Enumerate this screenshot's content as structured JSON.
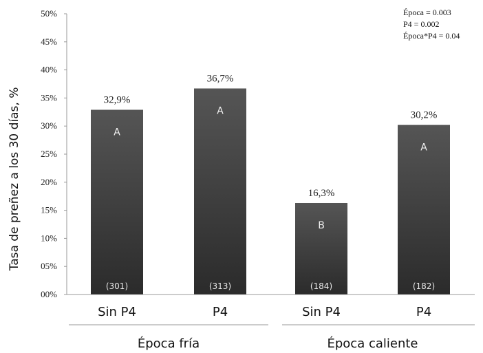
{
  "chart_data": {
    "type": "bar",
    "ylabel": "Tasa de preñez a los 30 días, %",
    "ylim": [
      0,
      50
    ],
    "y_ticks": [
      "00%",
      "05%",
      "10%",
      "15%",
      "20%",
      "25%",
      "30%",
      "35%",
      "40%",
      "45%",
      "50%"
    ],
    "categories": [
      "Sin P4",
      "P4",
      "Sin P4",
      "P4"
    ],
    "groups": [
      {
        "label": "Época fría",
        "categories": [
          0,
          1
        ]
      },
      {
        "label": "Época caliente",
        "categories": [
          2,
          3
        ]
      }
    ],
    "values": [
      32.9,
      36.7,
      16.3,
      30.2
    ],
    "value_labels": [
      "32,9%",
      "36,7%",
      "16,3%",
      "30,2%"
    ],
    "letters": [
      "A",
      "A",
      "B",
      "A"
    ],
    "counts": [
      "(301)",
      "(313)",
      "(184)",
      "(182)"
    ],
    "annotations": [
      "Época = 0.003",
      "P4 = 0.002",
      "Época*P4 = 0.04"
    ],
    "colors": {
      "bar_top": "#555555",
      "bar_bottom": "#2b2b2b",
      "axis": "#999999"
    },
    "grid": false,
    "legend": "none"
  }
}
